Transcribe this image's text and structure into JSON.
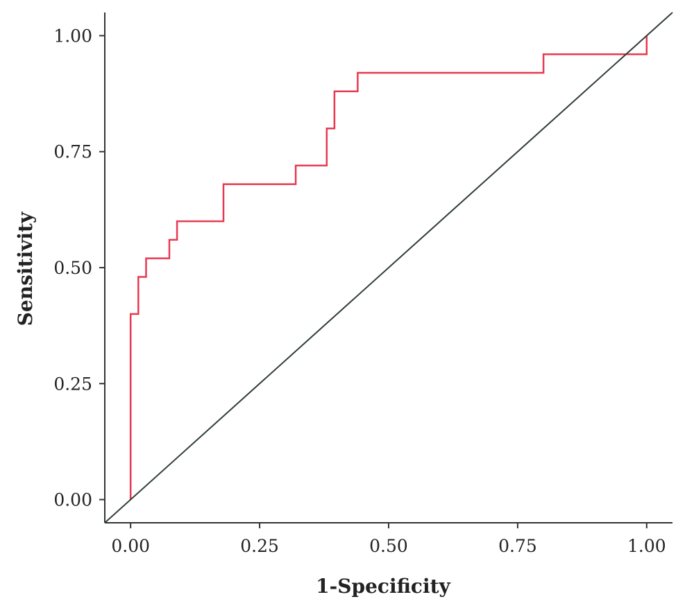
{
  "chart_data": {
    "type": "line",
    "title": "",
    "xlabel": "1-Specificity",
    "ylabel": "Sensitivity",
    "xlim": [
      -0.05,
      1.05
    ],
    "ylim": [
      -0.05,
      1.05
    ],
    "xticks": [
      0,
      0.25,
      0.5,
      0.75,
      1
    ],
    "yticks": [
      0,
      0.25,
      0.5,
      0.75,
      1
    ],
    "xtick_labels": [
      "0.00",
      "0.25",
      "0.50",
      "0.75",
      "1.00"
    ],
    "ytick_labels": [
      "0.00",
      "0.25",
      "0.50",
      "0.75",
      "1.00"
    ],
    "grid": false,
    "legend": "none",
    "series": [
      {
        "style": "step",
        "color": "#e8384f",
        "x": [
          0,
          0,
          0.015,
          0.015,
          0.03,
          0.03,
          0.075,
          0.075,
          0.09,
          0.09,
          0.18,
          0.18,
          0.32,
          0.32,
          0.38,
          0.38,
          0.395,
          0.395,
          0.44,
          0.44,
          0.8,
          0.8,
          1.0,
          1.0
        ],
        "y": [
          0,
          0.4,
          0.4,
          0.48,
          0.48,
          0.52,
          0.52,
          0.56,
          0.56,
          0.6,
          0.6,
          0.68,
          0.68,
          0.72,
          0.72,
          0.8,
          0.8,
          0.88,
          0.88,
          0.92,
          0.92,
          0.96,
          0.96,
          1.0
        ]
      },
      {
        "style": "reference",
        "color": "#2f3d3a",
        "x": [
          -0.05,
          1.05
        ],
        "y": [
          -0.05,
          1.05
        ]
      }
    ]
  }
}
